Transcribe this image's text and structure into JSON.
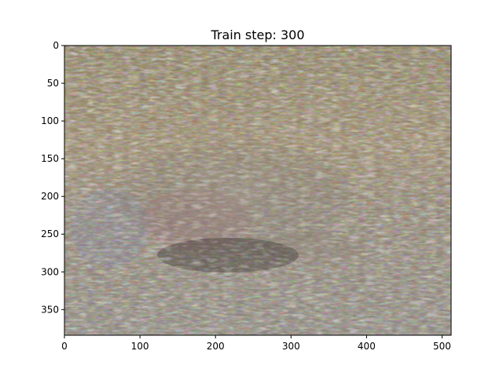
{
  "chart_data": {
    "type": "image",
    "title": "Train step: 300",
    "xlim": [
      0,
      512
    ],
    "ylim": [
      384,
      0
    ],
    "x_ticks": [
      0,
      100,
      200,
      300,
      400,
      500
    ],
    "y_ticks": [
      0,
      50,
      100,
      150,
      200,
      250,
      300,
      350
    ],
    "x_tick_labels": [
      "0",
      "100",
      "200",
      "300",
      "400",
      "500"
    ],
    "y_tick_labels": [
      "0",
      "50",
      "100",
      "150",
      "200",
      "250",
      "300",
      "350"
    ],
    "grid": false
  }
}
